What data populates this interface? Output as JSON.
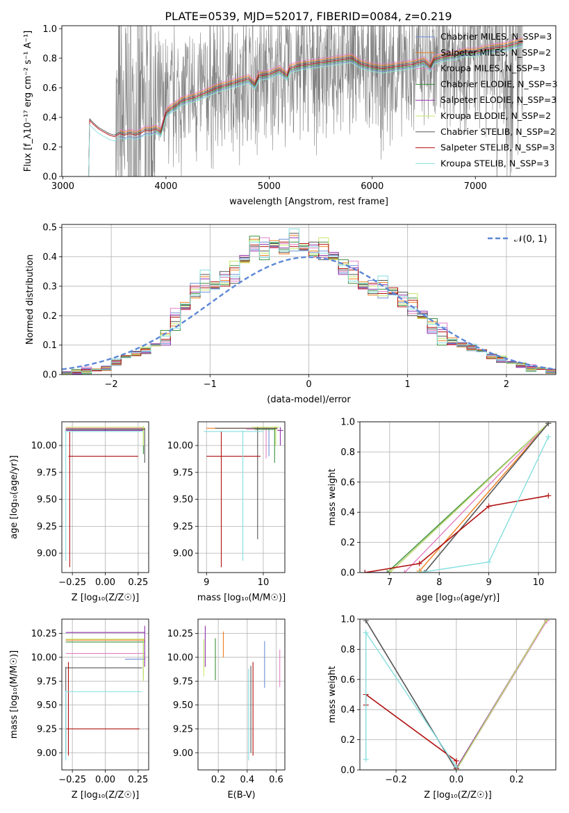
{
  "title": "PLATE=0539, MJD=52017, FIBERID=0084, z=0.219",
  "colors": [
    "#6a8fd8",
    "#ef7d1a",
    "#e37fc4",
    "#3a8f3a",
    "#8f2fa8",
    "#c3e865",
    "#555555",
    "#b10f0f",
    "#85dede"
  ],
  "chart_data": [
    {
      "id": "spectrum",
      "type": "line",
      "xlabel": "wavelength [Angstrom, rest frame]",
      "ylabel": "Flux [f_λ10⁻¹⁷ erg cm⁻² s⁻¹ A⁻¹]",
      "xlim": [
        2990,
        7780
      ],
      "ylim": [
        0,
        1.02
      ],
      "xticks": [
        3000,
        4000,
        5000,
        6000,
        7000
      ],
      "yticks": [
        0.0,
        0.2,
        0.4,
        0.6,
        0.8,
        1.0
      ],
      "legend": "upper right",
      "data_color": "#808080",
      "data": {
        "x": [
          3510,
          3600,
          3700,
          3800,
          3900,
          4000,
          4100,
          4200,
          4300,
          4400,
          4500,
          4600,
          4700,
          4800,
          4900,
          5000,
          5100,
          5200,
          5300,
          5400,
          5500,
          5600,
          5700,
          5800,
          5900,
          6000,
          6100,
          6200,
          6300,
          6400,
          6500,
          6600,
          6700,
          6800,
          6900,
          7000,
          7100,
          7200,
          7300,
          7400
        ],
        "y": [
          0.28,
          0.33,
          0.37,
          0.4,
          0.39,
          0.49,
          0.53,
          0.55,
          0.55,
          0.57,
          0.6,
          0.62,
          0.64,
          0.66,
          0.66,
          0.68,
          0.7,
          0.72,
          0.73,
          0.74,
          0.76,
          0.76,
          0.78,
          0.8,
          0.74,
          0.7,
          0.68,
          0.7,
          0.72,
          0.75,
          0.77,
          0.79,
          0.8,
          0.82,
          0.82,
          0.84,
          0.85,
          0.86,
          0.88,
          0.9
        ]
      },
      "model_x": [
        3250,
        3260,
        3300,
        3350,
        3400,
        3450,
        3500,
        3550,
        3600,
        3650,
        3700,
        3750,
        3800,
        3850,
        3900,
        3950,
        4000,
        4050,
        4100,
        4150,
        4200,
        4300,
        4400,
        4500,
        4600,
        4700,
        4800,
        4861,
        4900,
        5000,
        5100,
        5175,
        5200,
        5300,
        5400,
        5500,
        5600,
        5700,
        5800,
        5890,
        5950,
        6000,
        6100,
        6200,
        6300,
        6400,
        6500,
        6563,
        6600,
        6700,
        6800,
        6900,
        7000,
        7100,
        7200,
        7300,
        7400,
        7460
      ],
      "model_base": [
        0.0,
        0.36,
        0.33,
        0.3,
        0.28,
        0.26,
        0.25,
        0.27,
        0.26,
        0.27,
        0.26,
        0.27,
        0.29,
        0.29,
        0.3,
        0.28,
        0.41,
        0.44,
        0.46,
        0.49,
        0.5,
        0.52,
        0.55,
        0.58,
        0.6,
        0.62,
        0.64,
        0.6,
        0.66,
        0.67,
        0.7,
        0.66,
        0.71,
        0.73,
        0.74,
        0.75,
        0.76,
        0.77,
        0.78,
        0.74,
        0.73,
        0.72,
        0.71,
        0.72,
        0.73,
        0.74,
        0.76,
        0.72,
        0.77,
        0.79,
        0.8,
        0.82,
        0.82,
        0.84,
        0.85,
        0.86,
        0.88,
        0.89
      ],
      "series": [
        {
          "name": "Chabrier MILES, N_SSP=3",
          "offset": 0.0,
          "xmin": 3540
        },
        {
          "name": "Salpeter MILES, N_SSP=2",
          "offset": 0.04,
          "xmin": 3540
        },
        {
          "name": "Kroupa MILES, N_SSP=3",
          "offset": 0.05,
          "xmin": 3540
        },
        {
          "name": "Chabrier ELODIE, N_SSP=3",
          "offset": 0.01,
          "xmin": 3900
        },
        {
          "name": "Salpeter ELODIE, N_SSP=3",
          "offset": 0.02,
          "xmin": 3900
        },
        {
          "name": "Kroupa ELODIE, N_SSP=2",
          "offset": -0.01,
          "xmin": 3900
        },
        {
          "name": "Chabrier STELIB, N_SSP=2",
          "offset": 0.03,
          "xmin": 3250
        },
        {
          "name": "Salpeter STELIB, N_SSP=3",
          "offset": 0.02,
          "xmin": 3250
        },
        {
          "name": "Kroupa STELIB, N_SSP=3",
          "offset": -0.01,
          "xmin": 3250
        }
      ]
    },
    {
      "id": "residuals",
      "type": "line",
      "xlabel": "(data-model)/error",
      "ylabel": "Normed distribution",
      "xlim": [
        -2.5,
        2.5
      ],
      "ylim": [
        0,
        0.51
      ],
      "xticks": [
        -2,
        -1,
        0,
        1,
        2
      ],
      "yticks": [
        0.0,
        0.1,
        0.2,
        0.3,
        0.4,
        0.5
      ],
      "legend": "upper right",
      "normal": {
        "name": "𝒩(0, 1)",
        "color": "#5b86d6"
      },
      "histogram": {
        "bin_width": 0.1,
        "bin_start": -2.5,
        "centers": [
          -2.45,
          -2.35,
          -2.25,
          -2.15,
          -2.05,
          -1.95,
          -1.85,
          -1.75,
          -1.65,
          -1.55,
          -1.45,
          -1.35,
          -1.25,
          -1.15,
          -1.05,
          -0.95,
          -0.85,
          -0.75,
          -0.65,
          -0.55,
          -0.45,
          -0.35,
          -0.25,
          -0.15,
          -0.05,
          0.05,
          0.15,
          0.25,
          0.35,
          0.45,
          0.55,
          0.65,
          0.75,
          0.85,
          0.95,
          1.05,
          1.15,
          1.25,
          1.35,
          1.45,
          1.55,
          1.65,
          1.75,
          1.85,
          1.95,
          2.05,
          2.15,
          2.25,
          2.35,
          2.45
        ],
        "values": [
          0.005,
          0.008,
          0.012,
          0.015,
          0.02,
          0.04,
          0.06,
          0.07,
          0.08,
          0.1,
          0.12,
          0.18,
          0.23,
          0.28,
          0.31,
          0.3,
          0.32,
          0.34,
          0.39,
          0.44,
          0.42,
          0.44,
          0.43,
          0.45,
          0.43,
          0.42,
          0.42,
          0.4,
          0.36,
          0.34,
          0.3,
          0.29,
          0.29,
          0.28,
          0.25,
          0.23,
          0.2,
          0.16,
          0.13,
          0.11,
          0.1,
          0.09,
          0.08,
          0.06,
          0.05,
          0.04,
          0.03,
          0.02,
          0.02,
          0.01
        ]
      }
    },
    {
      "id": "age-vs-z",
      "type": "scatter",
      "xlabel": "Z [log₁₀(Z/Z☉)]",
      "ylabel": "age  [log₁₀(age/yr)]",
      "xlim": [
        -0.33,
        0.33
      ],
      "ylim": [
        8.82,
        10.22
      ],
      "xticks": [
        -0.25,
        0.0,
        0.25
      ],
      "yticks": [
        9.0,
        9.25,
        9.5,
        9.75,
        10.0
      ],
      "points": [
        {
          "x": 0.0,
          "y": 10.15,
          "xlo": -0.3,
          "xhi": 0.3,
          "ylo": 10.14,
          "yhi": 10.16
        },
        {
          "x": 0.0,
          "y": 10.16,
          "xlo": -0.3,
          "xhi": 0.3,
          "ylo": 10.15,
          "yhi": 10.17
        },
        {
          "x": 0.0,
          "y": 10.16,
          "xlo": -0.3,
          "xhi": 0.29,
          "ylo": 10.14,
          "yhi": 10.17
        },
        {
          "x": 0.29,
          "y": 10.15,
          "xlo": -0.3,
          "xhi": 0.3,
          "ylo": 9.92,
          "yhi": 10.17
        },
        {
          "x": 0.0,
          "y": 10.14,
          "xlo": -0.3,
          "xhi": 0.29,
          "ylo": 10.13,
          "yhi": 10.15
        },
        {
          "x": 0.29,
          "y": 10.17,
          "xlo": -0.3,
          "xhi": 0.3,
          "ylo": 10.0,
          "yhi": 10.18
        },
        {
          "x": 0.3,
          "y": 10.15,
          "xlo": -0.3,
          "xhi": 0.3,
          "ylo": 9.84,
          "yhi": 10.16
        },
        {
          "x": -0.27,
          "y": 9.9,
          "xlo": -0.28,
          "xhi": 0.25,
          "ylo": 8.87,
          "yhi": 10.13
        },
        {
          "x": -0.3,
          "y": 10.13,
          "xlo": -0.3,
          "xhi": 0.28,
          "ylo": 8.93,
          "yhi": 10.14
        }
      ]
    },
    {
      "id": "age-vs-mass",
      "type": "scatter",
      "xlabel": "mass [log₁₀(M/M☉)]",
      "ylabel": "",
      "xlim": [
        8.85,
        10.38
      ],
      "ylim": [
        8.82,
        10.22
      ],
      "xticks": [
        9,
        10
      ],
      "yticks": [
        9.0,
        9.25,
        9.5,
        9.75,
        10.0
      ],
      "points": [
        {
          "x": 10.1,
          "y": 10.15,
          "xlo": 9.9,
          "xhi": 10.18,
          "ylo": 9.9,
          "yhi": 10.16
        },
        {
          "x": 10.2,
          "y": 10.16,
          "xlo": 9.0,
          "xhi": 10.25,
          "ylo": 10.14,
          "yhi": 10.17
        },
        {
          "x": 10.05,
          "y": 10.15,
          "xlo": 9.7,
          "xhi": 10.25,
          "ylo": 9.88,
          "yhi": 10.17
        },
        {
          "x": 10.2,
          "y": 10.15,
          "xlo": 9.85,
          "xhi": 10.22,
          "ylo": 9.84,
          "yhi": 10.16
        },
        {
          "x": 10.3,
          "y": 10.14,
          "xlo": 10.25,
          "xhi": 10.35,
          "ylo": 10.0,
          "yhi": 10.17
        },
        {
          "x": 10.22,
          "y": 10.17,
          "xlo": 9.8,
          "xhi": 10.28,
          "ylo": 10.0,
          "yhi": 10.18
        },
        {
          "x": 9.9,
          "y": 10.16,
          "xlo": 9.15,
          "xhi": 10.25,
          "ylo": 9.13,
          "yhi": 10.17
        },
        {
          "x": 9.26,
          "y": 9.9,
          "xlo": 9.0,
          "xhi": 9.95,
          "ylo": 8.87,
          "yhi": 10.13
        },
        {
          "x": 9.64,
          "y": 10.13,
          "xlo": 8.95,
          "xhi": 10.0,
          "ylo": 8.93,
          "yhi": 10.14
        }
      ]
    },
    {
      "id": "mass-weight-vs-age",
      "type": "line",
      "xlabel": "age  [log₁₀(age/yr)]",
      "ylabel": "mass weight",
      "xlim": [
        6.4,
        10.35
      ],
      "ylim": [
        0,
        1
      ],
      "xticks": [
        7,
        8,
        9,
        10
      ],
      "yticks": [
        0.0,
        0.2,
        0.4,
        0.6,
        0.8,
        1.0
      ],
      "series": [
        {
          "x": [
            7.0,
            10.2
          ],
          "y": [
            0.0,
            0.99
          ]
        },
        {
          "x": [
            7.6,
            10.2
          ],
          "y": [
            0.01,
            0.99
          ]
        },
        {
          "x": [
            7.3,
            10.2
          ],
          "y": [
            0.0,
            0.99
          ]
        },
        {
          "x": [
            6.95,
            10.2
          ],
          "y": [
            0.0,
            0.99
          ]
        },
        {
          "x": [
            6.5,
            7.0,
            10.2
          ],
          "y": [
            0.0,
            0.0,
            0.99
          ]
        },
        {
          "x": [
            7.0,
            10.2
          ],
          "y": [
            0.0,
            0.99
          ]
        },
        {
          "x": [
            7.7,
            10.2
          ],
          "y": [
            0.0,
            0.99
          ]
        },
        {
          "x": [
            6.5,
            7.6,
            9.0,
            10.2
          ],
          "y": [
            0.0,
            0.06,
            0.44,
            0.51
          ]
        },
        {
          "x": [
            7.6,
            9.0,
            10.2
          ],
          "y": [
            0.0,
            0.07,
            0.9
          ]
        }
      ]
    },
    {
      "id": "mass-vs-z",
      "type": "scatter",
      "xlabel": "Z [log₁₀(Z/Z☉)]",
      "ylabel": "mass [log₁₀(M/M☉)]",
      "xlim": [
        -0.33,
        0.33
      ],
      "ylim": [
        8.82,
        10.4
      ],
      "xticks": [
        -0.25,
        0.0,
        0.25
      ],
      "yticks": [
        9.0,
        9.25,
        9.5,
        9.75,
        10.0,
        10.25
      ],
      "points": [
        {
          "x": 0.29,
          "y": 9.98,
          "xlo": 0.15,
          "xhi": 0.3,
          "ylo": 9.97,
          "yhi": 9.99
        },
        {
          "x": 0.29,
          "y": 10.18,
          "xlo": -0.3,
          "xhi": 0.3,
          "ylo": 10.17,
          "yhi": 10.19
        },
        {
          "x": 0.29,
          "y": 10.04,
          "xlo": -0.3,
          "xhi": 0.3,
          "ylo": 9.75,
          "yhi": 10.05
        },
        {
          "x": 0.29,
          "y": 10.16,
          "xlo": -0.3,
          "xhi": 0.3,
          "ylo": 9.8,
          "yhi": 10.17
        },
        {
          "x": 0.3,
          "y": 10.26,
          "xlo": -0.3,
          "xhi": 0.3,
          "ylo": 9.9,
          "yhi": 10.33
        },
        {
          "x": 0.29,
          "y": 10.19,
          "xlo": -0.3,
          "xhi": 0.3,
          "ylo": 9.75,
          "yhi": 10.2
        },
        {
          "x": -0.3,
          "y": 9.89,
          "xlo": -0.3,
          "xhi": 0.28,
          "ylo": 9.0,
          "yhi": 9.9
        },
        {
          "x": -0.28,
          "y": 9.25,
          "xlo": -0.3,
          "xhi": 0.26,
          "ylo": 8.97,
          "yhi": 9.95
        },
        {
          "x": -0.3,
          "y": 9.64,
          "xlo": -0.3,
          "xhi": 0.28,
          "ylo": 8.92,
          "yhi": 9.65
        }
      ]
    },
    {
      "id": "mass-vs-ebv",
      "type": "scatter",
      "xlabel": "E(B-V)",
      "ylabel": "",
      "xlim": [
        0.06,
        0.66
      ],
      "ylim": [
        8.82,
        10.4
      ],
      "xticks": [
        0.2,
        0.4,
        0.6
      ],
      "yticks": [
        9.0,
        9.25,
        9.5,
        9.75,
        10.0,
        10.25
      ],
      "points": [
        {
          "x": 0.52,
          "y": 9.9,
          "ylo": 9.68,
          "yhi": 10.17
        },
        {
          "x": 0.235,
          "y": 10.1,
          "ylo": 10.0,
          "yhi": 10.27
        },
        {
          "x": 0.625,
          "y": 9.9,
          "ylo": 9.69,
          "yhi": 10.08
        },
        {
          "x": 0.18,
          "y": 10.0,
          "ylo": 9.76,
          "yhi": 10.2
        },
        {
          "x": 0.11,
          "y": 10.1,
          "ylo": 9.9,
          "yhi": 10.33
        },
        {
          "x": 0.1,
          "y": 10.0,
          "ylo": 9.8,
          "yhi": 10.19
        },
        {
          "x": 0.425,
          "y": 9.5,
          "ylo": 9.0,
          "yhi": 9.91
        },
        {
          "x": 0.44,
          "y": 9.3,
          "ylo": 8.97,
          "yhi": 9.95
        },
        {
          "x": 0.41,
          "y": 9.4,
          "ylo": 8.92,
          "yhi": 9.88
        }
      ]
    },
    {
      "id": "mass-weight-vs-z",
      "type": "line",
      "xlabel": "Z [log₁₀(Z/Z☉)]",
      "ylabel": "mass weight",
      "xlim": [
        -0.32,
        0.33
      ],
      "ylim": [
        0,
        1
      ],
      "xticks": [
        -0.2,
        0.0,
        0.2
      ],
      "yticks": [
        0.0,
        0.2,
        0.4,
        0.6,
        0.8,
        1.0
      ],
      "series": [
        {
          "x": [
            0.0,
            0.3
          ],
          "y": [
            0.0,
            0.99
          ]
        },
        {
          "x": [
            0.0,
            0.3
          ],
          "y": [
            0.01,
            0.99
          ]
        },
        {
          "x": [
            0.0,
            0.3
          ],
          "y": [
            0.0,
            0.99
          ]
        },
        {
          "x": [
            0.0,
            0.3
          ],
          "y": [
            0.0,
            1.0
          ]
        },
        {
          "x": [
            0.0,
            0.3
          ],
          "y": [
            0.01,
            1.0
          ]
        },
        {
          "x": [
            0.0,
            0.3
          ],
          "y": [
            0.0,
            1.0
          ]
        },
        {
          "x": [
            -0.3,
            0.0
          ],
          "y": [
            0.99,
            0.0
          ]
        },
        {
          "x": [
            -0.3,
            -0.3,
            0.0,
            0.0
          ],
          "y": [
            0.43,
            0.5,
            0.06,
            0.01
          ]
        },
        {
          "x": [
            -0.3,
            -0.3,
            0.0
          ],
          "y": [
            0.07,
            0.91,
            0.02
          ]
        }
      ]
    }
  ]
}
